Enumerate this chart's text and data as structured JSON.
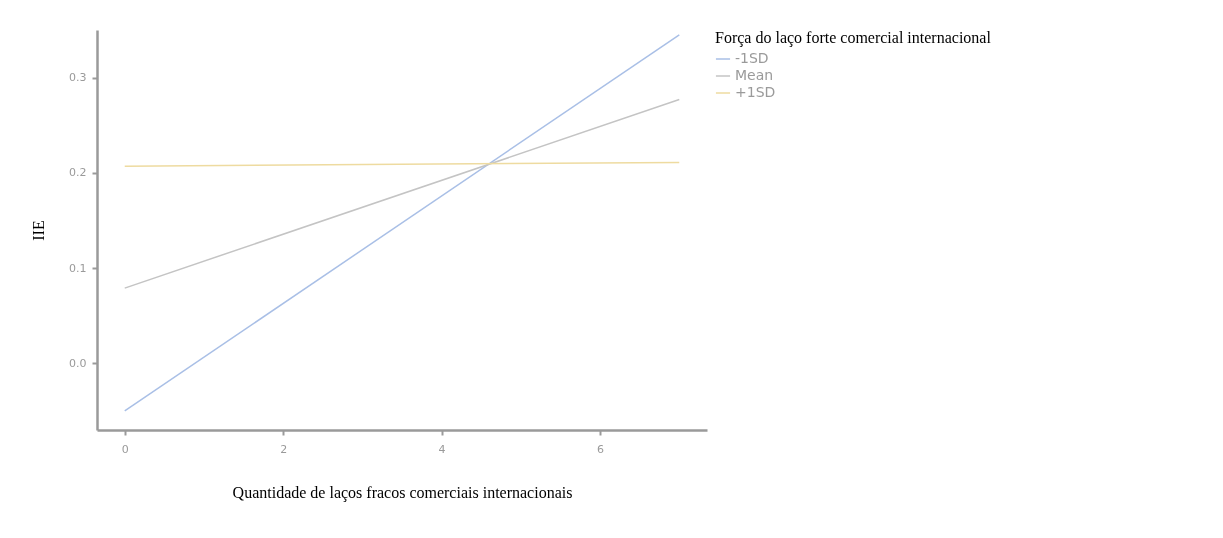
{
  "chart_data": {
    "type": "line",
    "xlabel": "Quantidade de laços fracos comerciais internacionais",
    "ylabel": "IIE",
    "legend_title": "Força do laço forte comercial internacional",
    "x": [
      0,
      7
    ],
    "series": [
      {
        "name": "-1SD",
        "color": "#a9bfe6",
        "values": [
          -0.05,
          0.345
        ]
      },
      {
        "name": "Mean",
        "color": "#c4c4c4",
        "values": [
          0.079,
          0.277
        ]
      },
      {
        "name": "+1SD",
        "color": "#eedba0",
        "values": [
          0.207,
          0.211
        ]
      }
    ],
    "xlim": [
      -0.35,
      7.35
    ],
    "xticks": [
      0,
      2,
      4,
      6
    ],
    "ylim": [
      -0.07,
      0.35
    ],
    "yticks": [
      {
        "value": 0,
        "label": "0.0"
      },
      0.1,
      0.2,
      0.3
    ],
    "grid": false,
    "legend": "right",
    "marker": "none",
    "line_style": "solid"
  }
}
